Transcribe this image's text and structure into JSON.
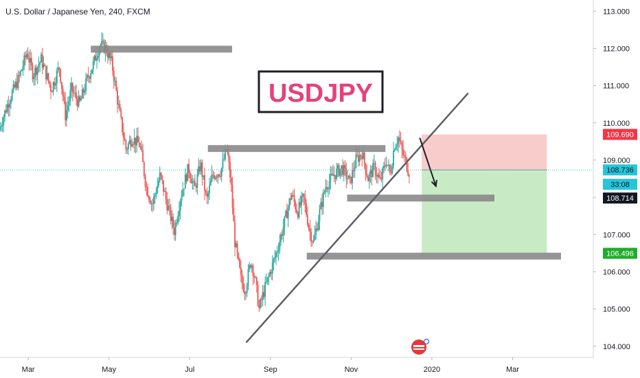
{
  "chart_data": {
    "type": "candlestick",
    "title": "U.S. Dollar / Japanese Yen, 240, FXCM",
    "annotation_label": "USDJPY",
    "ylim": [
      103.7,
      113.3
    ],
    "y_ticks": [
      "113.000",
      "112.000",
      "111.000",
      "110.000",
      "109.000",
      "108.000",
      "107.000",
      "106.000",
      "105.000",
      "104.000"
    ],
    "y_tick_values": [
      113,
      112,
      111,
      110,
      109,
      108,
      107,
      106,
      105,
      104
    ],
    "x_ticks": [
      "Mar",
      "May",
      "Jul",
      "Sep",
      "Nov",
      "2020",
      "Mar"
    ],
    "x_tick_positions": [
      0.2,
      2.2,
      4.2,
      6.2,
      8.2,
      10.2,
      12.2
    ],
    "xlim": [
      -0.5,
      14.2
    ],
    "price_path": [
      [
        -0.5,
        109.8
      ],
      [
        -0.25,
        110.6
      ],
      [
        0.0,
        111.2
      ],
      [
        0.2,
        111.9
      ],
      [
        0.35,
        111.3
      ],
      [
        0.55,
        111.7
      ],
      [
        0.8,
        110.9
      ],
      [
        1.0,
        111.5
      ],
      [
        1.15,
        110.2
      ],
      [
        1.3,
        110.9
      ],
      [
        1.5,
        110.5
      ],
      [
        1.7,
        111.2
      ],
      [
        1.85,
        111.6
      ],
      [
        2.0,
        112.1
      ],
      [
        2.15,
        112.0
      ],
      [
        2.3,
        111.6
      ],
      [
        2.4,
        110.9
      ],
      [
        2.5,
        110.2
      ],
      [
        2.65,
        109.3
      ],
      [
        2.8,
        109.6
      ],
      [
        3.0,
        109.4
      ],
      [
        3.15,
        108.3
      ],
      [
        3.3,
        107.8
      ],
      [
        3.5,
        108.6
      ],
      [
        3.65,
        107.9
      ],
      [
        3.85,
        107.1
      ],
      [
        4.0,
        108.0
      ],
      [
        4.2,
        108.8
      ],
      [
        4.35,
        108.2
      ],
      [
        4.5,
        108.9
      ],
      [
        4.65,
        107.9
      ],
      [
        4.8,
        108.6
      ],
      [
        5.0,
        108.7
      ],
      [
        5.15,
        109.3
      ],
      [
        5.25,
        108.4
      ],
      [
        5.35,
        106.8
      ],
      [
        5.5,
        105.8
      ],
      [
        5.6,
        105.5
      ],
      [
        5.75,
        106.3
      ],
      [
        5.85,
        105.8
      ],
      [
        5.95,
        105.0
      ],
      [
        6.05,
        105.4
      ],
      [
        6.2,
        105.9
      ],
      [
        6.4,
        106.6
      ],
      [
        6.55,
        107.2
      ],
      [
        6.75,
        108.1
      ],
      [
        6.9,
        107.6
      ],
      [
        7.05,
        108.0
      ],
      [
        7.2,
        107.1
      ],
      [
        7.3,
        106.8
      ],
      [
        7.45,
        107.6
      ],
      [
        7.6,
        108.3
      ],
      [
        7.8,
        108.6
      ],
      [
        8.0,
        108.8
      ],
      [
        8.2,
        108.4
      ],
      [
        8.35,
        109.0
      ],
      [
        8.5,
        109.2
      ],
      [
        8.65,
        108.5
      ],
      [
        8.8,
        108.8
      ],
      [
        8.95,
        108.4
      ],
      [
        9.1,
        109.0
      ],
      [
        9.2,
        108.6
      ],
      [
        9.3,
        109.4
      ],
      [
        9.4,
        109.6
      ],
      [
        9.5,
        109.2
      ],
      [
        9.6,
        108.9
      ],
      [
        9.65,
        108.7
      ]
    ],
    "horizontal_levels": [
      {
        "x0": 1.75,
        "x1": 5.25,
        "y": 111.98
      },
      {
        "x0": 4.65,
        "x1": 9.05,
        "y": 109.31
      },
      {
        "x0": 8.1,
        "x1": 11.75,
        "y": 107.98
      },
      {
        "x0": 7.1,
        "x1": 13.4,
        "y": 106.42
      }
    ],
    "trendline": {
      "x0": 5.6,
      "x1": 11.1,
      "y0": 104.1,
      "y1": 110.8
    },
    "arrow": {
      "x0": 9.9,
      "x1": 10.3,
      "y0": 109.6,
      "y1": 108.3
    },
    "position": {
      "x0": 9.95,
      "x1": 13.05,
      "entry": 108.736,
      "stop": 109.69,
      "target": 106.496
    },
    "current_price": 108.736,
    "price_tags": [
      {
        "label": "109.690",
        "value": 109.69,
        "bg": "#f23645",
        "fg": "#ffffff"
      },
      {
        "label": "108.736",
        "value": 108.736,
        "bg": "#26c6da",
        "fg": "#131722"
      },
      {
        "label": "33:08",
        "value": 108.35,
        "bg": "#26c6da",
        "fg": "#131722"
      },
      {
        "label": "108.714",
        "value": 107.98,
        "bg": "#131722",
        "fg": "#ffffff"
      },
      {
        "label": "106.496",
        "value": 106.496,
        "bg": "#22ab2c",
        "fg": "#ffffff"
      }
    ]
  },
  "colors": {
    "up": "#26a69a",
    "down": "#ef5350",
    "level": "#8a8a8a",
    "trendline": "#5d5d66",
    "stop_zone": "#f9cccc",
    "target_zone": "#c8ebc6",
    "label_text": "#e5427a"
  }
}
